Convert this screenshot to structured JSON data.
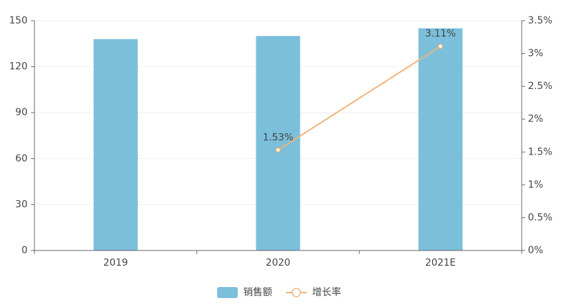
{
  "chart_data": {
    "type": "bar_line",
    "categories": [
      "2019",
      "2020",
      "2021E"
    ],
    "series": [
      {
        "name": "销售额",
        "type": "bar",
        "color": "#7bbfdb",
        "values": [
          138,
          140,
          145
        ]
      },
      {
        "name": "增长率",
        "type": "line",
        "axis": "y2",
        "color": "#f0b27a",
        "values": [
          null,
          1.53,
          3.11
        ],
        "value_labels": [
          null,
          "1.53%",
          "3.11%"
        ]
      }
    ],
    "ylim": [
      0,
      150
    ],
    "yticks": [
      0,
      30,
      60,
      90,
      120,
      150
    ],
    "y2lim": [
      0,
      3.5
    ],
    "y2ticks": [
      {
        "value": 0,
        "label": "0%"
      },
      {
        "value": 0.5,
        "label": "0.5%"
      },
      {
        "value": 1,
        "label": "1%"
      },
      {
        "value": 1.5,
        "label": "1.5%"
      },
      {
        "value": 2,
        "label": "2%"
      },
      {
        "value": 2.5,
        "label": "2.5%"
      },
      {
        "value": 3,
        "label": "3%"
      },
      {
        "value": 3.5,
        "label": "3.5%"
      }
    ],
    "grid": true,
    "legend": "bottom"
  }
}
